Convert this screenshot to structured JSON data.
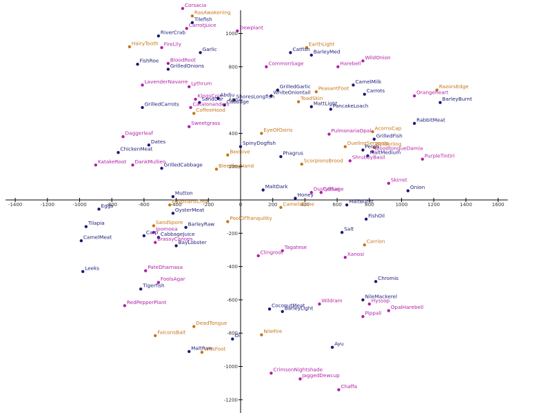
{
  "chart_data": {
    "type": "scatter",
    "title": "",
    "xlabel": "",
    "ylabel": "",
    "xlim": [
      -1460,
      1660
    ],
    "ylim": [
      -1290,
      1140
    ],
    "x_ticks": [
      -1400,
      -1200,
      -1000,
      -800,
      -600,
      -400,
      -200,
      0,
      200,
      400,
      600,
      800,
      1000,
      1200,
      1400,
      1600
    ],
    "y_ticks": [
      -1200,
      -1000,
      -800,
      -600,
      -400,
      -200,
      200,
      400,
      600,
      800,
      1000
    ],
    "x_tick_labels": [
      "-1400",
      "-1200",
      "-1000",
      "-800",
      "-600",
      "-400",
      "-200",
      "0",
      "200",
      "400",
      "600",
      "800",
      "1000",
      "1200",
      "1400",
      "1600"
    ],
    "y_tick_labels": [
      "-1200",
      "-1000",
      "-800",
      "-600",
      "-400",
      "-200",
      "200",
      "400",
      "600",
      "800",
      "1000"
    ],
    "grid": false,
    "colors": {
      "navy": "#1a1a7a",
      "magenta": "#b01fa8",
      "orange": "#c77418"
    },
    "points": [
      {
        "label": "Corsacia",
        "x": -360,
        "y": 1150,
        "color": "magenta"
      },
      {
        "label": "RasAwakening",
        "x": -300,
        "y": 1105,
        "color": "orange"
      },
      {
        "label": "Tilefish",
        "x": -300,
        "y": 1065,
        "color": "navy"
      },
      {
        "label": "CarrotJuice",
        "x": -335,
        "y": 1030,
        "color": "magenta"
      },
      {
        "label": "RiverCrab",
        "x": -510,
        "y": 985,
        "color": "navy"
      },
      {
        "label": "HairyTooth",
        "x": -690,
        "y": 920,
        "color": "orange"
      },
      {
        "label": "FireLily",
        "x": -490,
        "y": 915,
        "color": "magenta"
      },
      {
        "label": "Garlic",
        "x": -250,
        "y": 885,
        "color": "navy"
      },
      {
        "label": "BloodRoot",
        "x": -450,
        "y": 820,
        "color": "magenta"
      },
      {
        "label": "FishRoe",
        "x": -640,
        "y": 815,
        "color": "navy"
      },
      {
        "label": "GrilledOnions",
        "x": -450,
        "y": 785,
        "color": "navy"
      },
      {
        "label": "Dewplant",
        "x": -20,
        "y": 1015,
        "color": "magenta"
      },
      {
        "label": "EarthLight",
        "x": 410,
        "y": 915,
        "color": "orange"
      },
      {
        "label": "Catfish",
        "x": 310,
        "y": 885,
        "color": "navy"
      },
      {
        "label": "BarleyMed",
        "x": 440,
        "y": 870,
        "color": "navy"
      },
      {
        "label": "WildOnion",
        "x": 760,
        "y": 835,
        "color": "magenta"
      },
      {
        "label": "CommonSage",
        "x": 160,
        "y": 800,
        "color": "magenta"
      },
      {
        "label": "Harebell",
        "x": 605,
        "y": 800,
        "color": "magenta"
      },
      {
        "label": "LavenderNavarre",
        "x": -610,
        "y": 690,
        "color": "magenta"
      },
      {
        "label": "Lythrum",
        "x": -320,
        "y": 680,
        "color": "magenta"
      },
      {
        "label": "CamelMilk",
        "x": 700,
        "y": 690,
        "color": "navy"
      },
      {
        "label": "GrilledGarlic",
        "x": 230,
        "y": 660,
        "color": "navy"
      },
      {
        "label": "PeasantFoot",
        "x": 470,
        "y": 650,
        "color": "orange"
      },
      {
        "label": "RazorsEdge",
        "x": 1220,
        "y": 660,
        "color": "orange"
      },
      {
        "label": "WhiteOniontail",
        "x": 190,
        "y": 625,
        "color": "navy"
      },
      {
        "label": "Carrots",
        "x": 770,
        "y": 635,
        "color": "navy"
      },
      {
        "label": "Orangeheart",
        "x": 1080,
        "y": 625,
        "color": "magenta"
      },
      {
        "label": "KingsCoin",
        "x": -280,
        "y": 605,
        "color": "magenta"
      },
      {
        "label": "Abdju",
        "x": -140,
        "y": 610,
        "color": "navy"
      },
      {
        "label": "SandDar",
        "x": -255,
        "y": 585,
        "color": "navy"
      },
      {
        "label": "ShoresLongfish",
        "x": -40,
        "y": 600,
        "color": "navy"
      },
      {
        "label": "ToadSkin",
        "x": 360,
        "y": 590,
        "color": "orange"
      },
      {
        "label": "BarleyBurnt",
        "x": 1240,
        "y": 585,
        "color": "navy"
      },
      {
        "label": "Cabbage",
        "x": -100,
        "y": 570,
        "color": "navy"
      },
      {
        "label": "GrilledCarrots",
        "x": -610,
        "y": 555,
        "color": "navy"
      },
      {
        "label": "Catalonanders",
        "x": -310,
        "y": 555,
        "color": "magenta"
      },
      {
        "label": "MattLight",
        "x": 440,
        "y": 560,
        "color": "navy"
      },
      {
        "label": "PancakeLoach",
        "x": 560,
        "y": 545,
        "color": "navy"
      },
      {
        "label": "CoffeeHood",
        "x": -290,
        "y": 520,
        "color": "orange"
      },
      {
        "label": "Sweetgrass",
        "x": -320,
        "y": 440,
        "color": "magenta"
      },
      {
        "label": "RabbitMeat",
        "x": 1080,
        "y": 460,
        "color": "navy"
      },
      {
        "label": "EyeOfOsiris",
        "x": 130,
        "y": 400,
        "color": "orange"
      },
      {
        "label": "PulmonariaOpal",
        "x": 550,
        "y": 395,
        "color": "magenta"
      },
      {
        "label": "AcornsCap",
        "x": 820,
        "y": 410,
        "color": "orange"
      },
      {
        "label": "Daggerleaf",
        "x": -730,
        "y": 380,
        "color": "magenta"
      },
      {
        "label": "GrilledFish",
        "x": 830,
        "y": 365,
        "color": "navy"
      },
      {
        "label": "Dates",
        "x": -570,
        "y": 330,
        "color": "navy"
      },
      {
        "label": "SpinyDogfish",
        "x": 0,
        "y": 320,
        "color": "navy"
      },
      {
        "label": "DuelingSerpents",
        "x": 650,
        "y": 320,
        "color": "orange"
      },
      {
        "label": "Spiderling",
        "x": 830,
        "y": 315,
        "color": "orange"
      },
      {
        "label": "Perch",
        "x": 760,
        "y": 300,
        "color": "navy"
      },
      {
        "label": "BloodtongueDamia",
        "x": 820,
        "y": 290,
        "color": "magenta"
      },
      {
        "label": "ChickenMeat",
        "x": -760,
        "y": 285,
        "color": "navy"
      },
      {
        "label": "Beehive",
        "x": -80,
        "y": 270,
        "color": "orange"
      },
      {
        "label": "Phagrus",
        "x": 250,
        "y": 260,
        "color": "navy"
      },
      {
        "label": "MaltMedium",
        "x": 790,
        "y": 265,
        "color": "navy"
      },
      {
        "label": "PurpleTintiri",
        "x": 1130,
        "y": 245,
        "color": "magenta"
      },
      {
        "label": "ShrubbyBasil",
        "x": 680,
        "y": 235,
        "color": "magenta"
      },
      {
        "label": "KatakeRoot",
        "x": -900,
        "y": 210,
        "color": "magenta"
      },
      {
        "label": "DankMullien",
        "x": -670,
        "y": 210,
        "color": "magenta"
      },
      {
        "label": "ScorpionsBrood",
        "x": 380,
        "y": 215,
        "color": "orange"
      },
      {
        "label": "GrilledCabbage",
        "x": -490,
        "y": 190,
        "color": "navy"
      },
      {
        "label": "BleedingHand",
        "x": -150,
        "y": 185,
        "color": "orange"
      },
      {
        "label": "Skirret",
        "x": 920,
        "y": 100,
        "color": "magenta"
      },
      {
        "label": "MaltDark",
        "x": 140,
        "y": 60,
        "color": "navy"
      },
      {
        "label": "DustyBlue",
        "x": 440,
        "y": 45,
        "color": "magenta"
      },
      {
        "label": "CelSage",
        "x": 500,
        "y": 45,
        "color": "magenta"
      },
      {
        "label": "Onion",
        "x": 1040,
        "y": 55,
        "color": "navy"
      },
      {
        "label": "Honey",
        "x": 340,
        "y": 10,
        "color": "navy"
      },
      {
        "label": "Mutton",
        "x": -420,
        "y": 20,
        "color": "navy"
      },
      {
        "label": "MaltBurnt",
        "x": 660,
        "y": -30,
        "color": "navy"
      },
      {
        "label": "EgyptiansCrew",
        "x": -440,
        "y": -30,
        "color": "orange"
      },
      {
        "label": "CamelsBane",
        "x": 250,
        "y": -45,
        "color": "orange"
      },
      {
        "label": "Eggs",
        "x": -880,
        "y": -55,
        "color": "navy"
      },
      {
        "label": "OysterMeat",
        "x": -420,
        "y": -80,
        "color": "navy"
      },
      {
        "label": "FishOil",
        "x": 780,
        "y": -115,
        "color": "navy"
      },
      {
        "label": "PoolOfTranquility",
        "x": -80,
        "y": -130,
        "color": "orange"
      },
      {
        "label": "SandSpore",
        "x": -540,
        "y": -155,
        "color": "orange"
      },
      {
        "label": "Tilapia",
        "x": -960,
        "y": -160,
        "color": "navy"
      },
      {
        "label": "BarleyRaw",
        "x": -340,
        "y": -165,
        "color": "navy"
      },
      {
        "label": "Salt",
        "x": 630,
        "y": -195,
        "color": "navy"
      },
      {
        "label": "Ipomoea",
        "x": -540,
        "y": -195,
        "color": "magenta"
      },
      {
        "label": "Carp",
        "x": -600,
        "y": -215,
        "color": "navy"
      },
      {
        "label": "CabbageJuice",
        "x": -510,
        "y": -225,
        "color": "navy"
      },
      {
        "label": "BrassyCanops",
        "x": -530,
        "y": -255,
        "color": "magenta"
      },
      {
        "label": "CamelMeat",
        "x": -990,
        "y": -245,
        "color": "navy"
      },
      {
        "label": "BayLobster",
        "x": -400,
        "y": -275,
        "color": "navy"
      },
      {
        "label": "Carrion",
        "x": 770,
        "y": -270,
        "color": "orange"
      },
      {
        "label": "Tagatese",
        "x": 260,
        "y": -305,
        "color": "magenta"
      },
      {
        "label": "Clingroot",
        "x": 110,
        "y": -335,
        "color": "magenta"
      },
      {
        "label": "Xanosi",
        "x": 650,
        "y": -345,
        "color": "magenta"
      },
      {
        "label": "Leeks",
        "x": -980,
        "y": -430,
        "color": "navy"
      },
      {
        "label": "PateDharnasa",
        "x": -590,
        "y": -425,
        "color": "magenta"
      },
      {
        "label": "Chromis",
        "x": 840,
        "y": -490,
        "color": "navy"
      },
      {
        "label": "FoolsAgar",
        "x": -510,
        "y": -495,
        "color": "magenta"
      },
      {
        "label": "Tigerfish",
        "x": -620,
        "y": -535,
        "color": "navy"
      },
      {
        "label": "NileMackerel",
        "x": 760,
        "y": -600,
        "color": "navy"
      },
      {
        "label": "Wildram",
        "x": 490,
        "y": -625,
        "color": "magenta"
      },
      {
        "label": "Hyssop",
        "x": 800,
        "y": -625,
        "color": "magenta"
      },
      {
        "label": "RedPepperPlant",
        "x": -720,
        "y": -635,
        "color": "magenta"
      },
      {
        "label": "CoconutMeat",
        "x": 180,
        "y": -655,
        "color": "navy"
      },
      {
        "label": "OpalHarebell",
        "x": 920,
        "y": -665,
        "color": "magenta"
      },
      {
        "label": "BarleyLight",
        "x": 260,
        "y": -670,
        "color": "navy"
      },
      {
        "label": "Pippali",
        "x": 760,
        "y": -700,
        "color": "magenta"
      },
      {
        "label": "DeadTongue",
        "x": -290,
        "y": -760,
        "color": "orange"
      },
      {
        "label": "FalconsBait",
        "x": -530,
        "y": -815,
        "color": "orange"
      },
      {
        "label": "NileFire",
        "x": 130,
        "y": -810,
        "color": "orange"
      },
      {
        "label": "Oil",
        "x": -50,
        "y": -835,
        "color": "navy"
      },
      {
        "label": "Ayu",
        "x": 570,
        "y": -885,
        "color": "navy"
      },
      {
        "label": "MaltRaw",
        "x": -320,
        "y": -910,
        "color": "navy"
      },
      {
        "label": "WitsFoot",
        "x": -240,
        "y": -915,
        "color": "orange"
      },
      {
        "label": "CrimsonNightshade",
        "x": 190,
        "y": -1040,
        "color": "magenta"
      },
      {
        "label": "JaggedDewcup",
        "x": 370,
        "y": -1075,
        "color": "magenta"
      },
      {
        "label": "Chaffa",
        "x": 610,
        "y": -1140,
        "color": "magenta"
      }
    ]
  }
}
